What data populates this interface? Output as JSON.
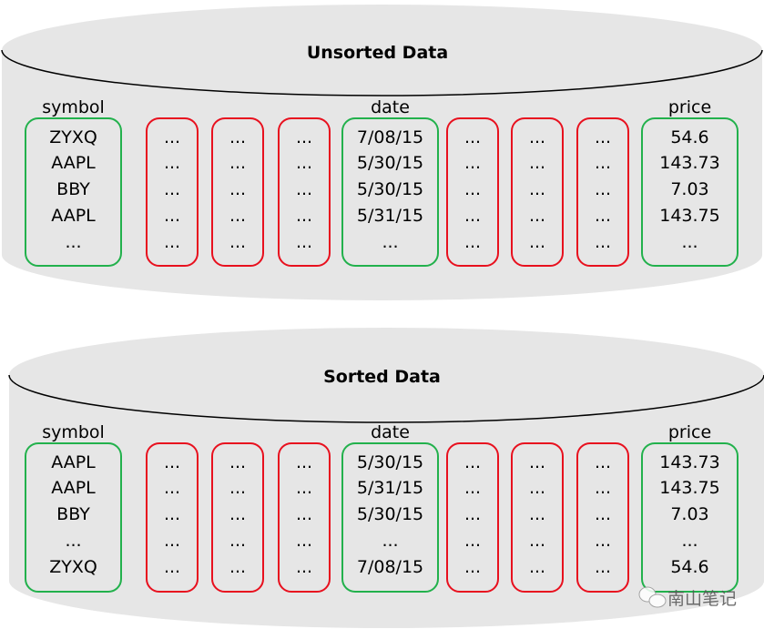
{
  "colors": {
    "key_column": "#22b14c",
    "other_column": "#e8101e",
    "cylinder": "#e6e6e6"
  },
  "cylinders": [
    {
      "title": "Unsorted Data",
      "headers": {
        "symbol": "symbol",
        "date": "date",
        "price": "price"
      },
      "symbol": [
        "ZYXQ",
        "AAPL",
        "BBY",
        "AAPL",
        "..."
      ],
      "date": [
        "7/08/15",
        "5/30/15",
        "5/30/15",
        "5/31/15",
        "..."
      ],
      "price": [
        "54.6",
        "143.73",
        "7.03",
        "143.75",
        "..."
      ],
      "other": [
        "...",
        "...",
        "...",
        "...",
        "..."
      ]
    },
    {
      "title": "Sorted Data",
      "headers": {
        "symbol": "symbol",
        "date": "date",
        "price": "price"
      },
      "symbol": [
        "AAPL",
        "AAPL",
        "BBY",
        "...",
        "ZYXQ"
      ],
      "date": [
        "5/30/15",
        "5/31/15",
        "5/30/15",
        "...",
        "7/08/15"
      ],
      "price": [
        "143.73",
        "143.75",
        "7.03",
        "...",
        "54.6"
      ],
      "other": [
        "...",
        "...",
        "...",
        "...",
        "..."
      ]
    }
  ],
  "watermark": {
    "icon": "wechat-icon",
    "text": "南山笔记"
  }
}
